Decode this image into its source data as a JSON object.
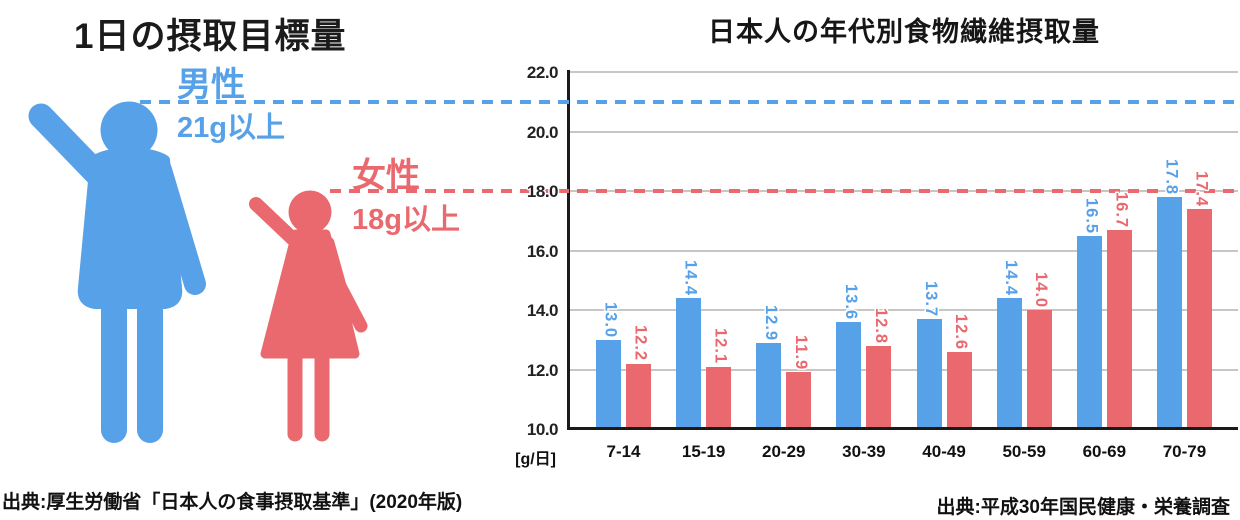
{
  "left_panel": {
    "title": "1日の摂取目標量",
    "male": {
      "label": "男性",
      "target": "21g以上",
      "color": "#57A1E8"
    },
    "female": {
      "label": "女性",
      "target": "18g以上",
      "color": "#E9696E"
    },
    "source": "出典:厚生労働省「日本人の食事摂取基準」(2020年版)"
  },
  "chart": {
    "title": "日本人の年代別食物繊維摂取量",
    "unit_label": "[g/日]",
    "source": "出典:平成30年国民健康・栄養調査"
  },
  "chart_data": {
    "type": "bar",
    "title": "日本人の年代別食物繊維摂取量",
    "ylabel": "[g/日]",
    "categories": [
      "7-14",
      "15-19",
      "20-29",
      "30-39",
      "40-49",
      "50-59",
      "60-69",
      "70-79"
    ],
    "series": [
      {
        "name": "男性",
        "color": "#57A1E8",
        "values": [
          13.0,
          14.4,
          12.9,
          13.6,
          13.7,
          14.4,
          16.5,
          17.8
        ]
      },
      {
        "name": "女性",
        "color": "#E9696E",
        "values": [
          12.2,
          12.1,
          11.9,
          12.8,
          12.6,
          14.0,
          16.7,
          17.4
        ]
      }
    ],
    "ylim": [
      10.0,
      22.0
    ],
    "yticks": [
      22.0,
      20.0,
      18.0,
      16.0,
      14.0,
      12.0,
      10.0
    ],
    "grid": "horizontal",
    "legend": "none",
    "value_labels": "rotated-90-above-bars",
    "reference_lines": [
      {
        "name": "male-target-line",
        "value": 21.0,
        "style": "dashed",
        "color": "#57A1E8"
      },
      {
        "name": "female-target-line",
        "value": 18.0,
        "style": "dashed",
        "color": "#E9696E"
      }
    ]
  }
}
